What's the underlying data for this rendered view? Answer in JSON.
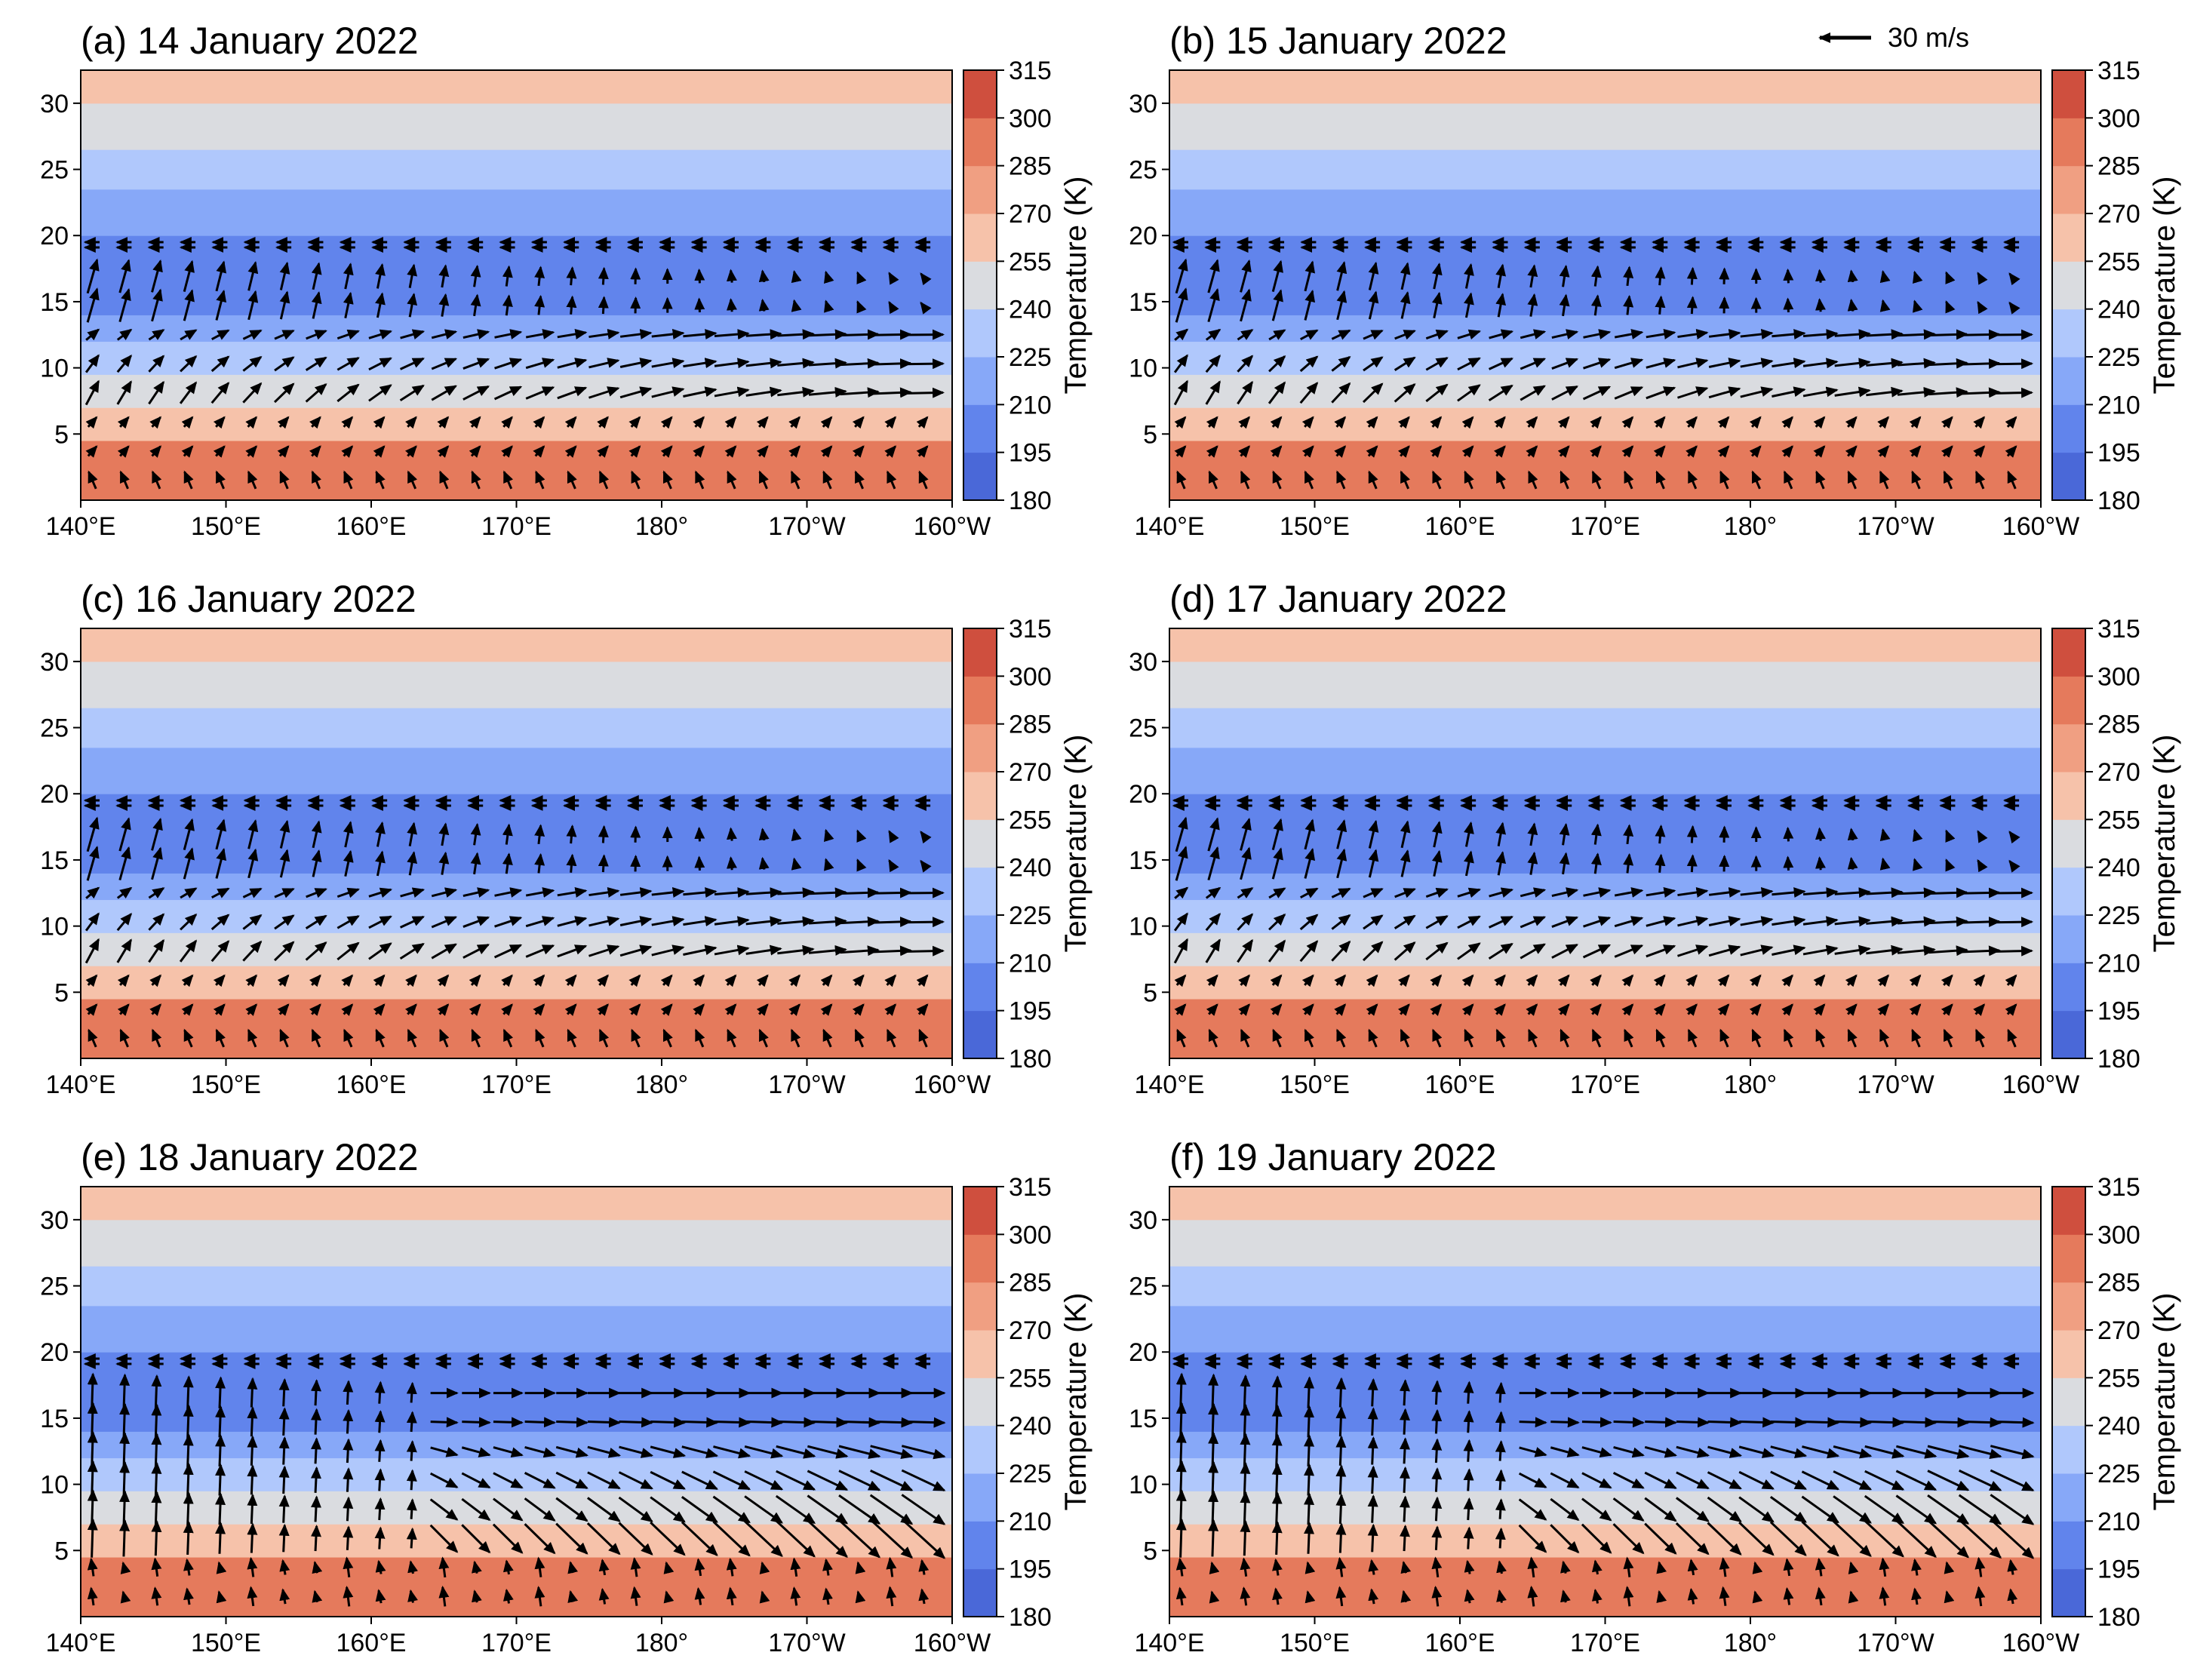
{
  "figure": {
    "reference_arrow": {
      "label": "30 m/s",
      "speed": 30
    }
  },
  "colorbar": {
    "label": "Temperature (K)",
    "ticks": [
      180,
      195,
      210,
      225,
      240,
      255,
      270,
      285,
      300,
      315
    ],
    "colors": [
      "#4a68d8",
      "#6184ec",
      "#87a8f8",
      "#b0c8fc",
      "#dadce0",
      "#f6c2aa",
      "#f09f82",
      "#e57a5c",
      "#cf4f3e"
    ]
  },
  "chart_data": [
    {
      "type": "contourf+quiver",
      "title": "(a) 14 January 2022",
      "x": [
        140,
        150,
        160,
        170,
        180,
        190,
        200
      ],
      "xticklabels": [
        "140°E",
        "150°E",
        "160°E",
        "170°E",
        "180°",
        "170°W",
        "160°W"
      ],
      "xlim": [
        140,
        200
      ],
      "y": [
        5,
        10,
        15,
        20,
        25,
        30
      ],
      "ylim": [
        0,
        32.5
      ],
      "ylabel": "",
      "temperature_bands_K_by_height_km": [
        [
          0,
          2,
          298
        ],
        [
          2,
          4.5,
          285
        ],
        [
          4.5,
          7,
          268
        ],
        [
          7,
          9.5,
          250
        ],
        [
          9.5,
          12,
          232
        ],
        [
          12,
          14,
          218
        ],
        [
          14,
          20,
          200
        ],
        [
          20,
          23.5,
          215
        ],
        [
          23.5,
          26.5,
          232
        ],
        [
          26.5,
          30,
          248
        ],
        [
          30,
          32.5,
          262
        ]
      ],
      "wind_pattern": "zonal-uniform"
    },
    {
      "type": "contourf+quiver",
      "title": "(b) 15 January 2022",
      "x": [
        140,
        150,
        160,
        170,
        180,
        190,
        200
      ],
      "xticklabels": [
        "140°E",
        "150°E",
        "160°E",
        "170°E",
        "180°",
        "170°W",
        "160°W"
      ],
      "xlim": [
        140,
        200
      ],
      "y": [
        5,
        10,
        15,
        20,
        25,
        30
      ],
      "ylim": [
        0,
        32.5
      ],
      "temperature_bands_K_by_height_km": [
        [
          0,
          2,
          298
        ],
        [
          2,
          4.5,
          285
        ],
        [
          4.5,
          7,
          268
        ],
        [
          7,
          9.5,
          250
        ],
        [
          9.5,
          12,
          232
        ],
        [
          12,
          14,
          218
        ],
        [
          14,
          20,
          200
        ],
        [
          20,
          23.5,
          215
        ],
        [
          23.5,
          26.5,
          232
        ],
        [
          26.5,
          30,
          248
        ],
        [
          30,
          32.5,
          262
        ]
      ],
      "wind_pattern": "zonal-uniform"
    },
    {
      "type": "contourf+quiver",
      "title": "(c) 16 January 2022",
      "x": [
        140,
        150,
        160,
        170,
        180,
        190,
        200
      ],
      "xticklabels": [
        "140°E",
        "150°E",
        "160°E",
        "170°E",
        "180°",
        "170°W",
        "160°W"
      ],
      "xlim": [
        140,
        200
      ],
      "y": [
        5,
        10,
        15,
        20,
        25,
        30
      ],
      "ylim": [
        0,
        32.5
      ],
      "temperature_bands_K_by_height_km": [
        [
          0,
          2,
          298
        ],
        [
          2,
          4.5,
          285
        ],
        [
          4.5,
          7,
          268
        ],
        [
          7,
          9.5,
          250
        ],
        [
          9.5,
          12,
          232
        ],
        [
          12,
          14,
          218
        ],
        [
          14,
          20,
          200
        ],
        [
          20,
          23.5,
          215
        ],
        [
          23.5,
          26.5,
          232
        ],
        [
          26.5,
          30,
          248
        ],
        [
          30,
          32.5,
          262
        ]
      ],
      "wind_pattern": "zonal-uniform"
    },
    {
      "type": "contourf+quiver",
      "title": "(d) 17 January 2022",
      "x": [
        140,
        150,
        160,
        170,
        180,
        190,
        200
      ],
      "xticklabels": [
        "140°E",
        "150°E",
        "160°E",
        "170°E",
        "180°",
        "170°W",
        "160°W"
      ],
      "xlim": [
        140,
        200
      ],
      "y": [
        5,
        10,
        15,
        20,
        25,
        30
      ],
      "ylim": [
        0,
        32.5
      ],
      "temperature_bands_K_by_height_km": [
        [
          0,
          2,
          298
        ],
        [
          2,
          4.5,
          285
        ],
        [
          4.5,
          7,
          268
        ],
        [
          7,
          9.5,
          250
        ],
        [
          9.5,
          12,
          232
        ],
        [
          12,
          14,
          218
        ],
        [
          14,
          20,
          200
        ],
        [
          20,
          23.5,
          215
        ],
        [
          23.5,
          26.5,
          232
        ],
        [
          26.5,
          30,
          248
        ],
        [
          30,
          32.5,
          262
        ]
      ],
      "wind_pattern": "zonal-uniform"
    },
    {
      "type": "contourf+quiver",
      "title": "(e) 18 January 2022",
      "x": [
        140,
        150,
        160,
        170,
        180,
        190,
        200
      ],
      "xticklabels": [
        "140°E",
        "150°E",
        "160°E",
        "170°E",
        "180°",
        "170°W",
        "160°W"
      ],
      "xlim": [
        140,
        200
      ],
      "y": [
        5,
        10,
        15,
        20,
        25,
        30
      ],
      "ylim": [
        0,
        32.5
      ],
      "temperature_bands_K_by_height_km": [
        [
          0,
          2,
          298
        ],
        [
          2,
          4.5,
          285
        ],
        [
          4.5,
          7,
          268
        ],
        [
          7,
          9.5,
          250
        ],
        [
          9.5,
          12,
          232
        ],
        [
          12,
          14,
          218
        ],
        [
          14,
          20,
          200
        ],
        [
          20,
          23.5,
          215
        ],
        [
          23.5,
          26.5,
          232
        ],
        [
          26.5,
          30,
          248
        ],
        [
          30,
          32.5,
          262
        ]
      ],
      "wind_pattern": "vertical-west"
    },
    {
      "type": "contourf+quiver",
      "title": "(f) 19 January 2022",
      "x": [
        140,
        150,
        160,
        170,
        180,
        190,
        200
      ],
      "xticklabels": [
        "140°E",
        "150°E",
        "160°E",
        "170°E",
        "180°",
        "170°W",
        "160°W"
      ],
      "xlim": [
        140,
        200
      ],
      "y": [
        5,
        10,
        15,
        20,
        25,
        30
      ],
      "ylim": [
        0,
        32.5
      ],
      "temperature_bands_K_by_height_km": [
        [
          0,
          2,
          298
        ],
        [
          2,
          4.5,
          285
        ],
        [
          4.5,
          7,
          268
        ],
        [
          7,
          9.5,
          250
        ],
        [
          9.5,
          12,
          232
        ],
        [
          12,
          14,
          218
        ],
        [
          14,
          20,
          200
        ],
        [
          20,
          23.5,
          215
        ],
        [
          23.5,
          26.5,
          232
        ],
        [
          26.5,
          30,
          248
        ],
        [
          30,
          32.5,
          262
        ]
      ],
      "wind_pattern": "vertical-west"
    }
  ]
}
